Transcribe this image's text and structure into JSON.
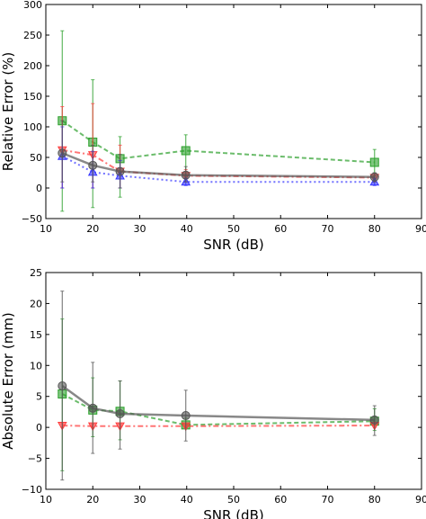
{
  "chart_data": [
    {
      "type": "line",
      "xlabel": "SNR (dB)",
      "ylabel": "Relative Error (%)",
      "xlim": [
        10,
        90
      ],
      "ylim": [
        -50,
        300
      ],
      "xticks": [
        "10",
        "20",
        "30",
        "40",
        "50",
        "60",
        "70",
        "80",
        "90"
      ],
      "yticks": [
        "−50",
        "0",
        "50",
        "100",
        "150",
        "200",
        "250",
        "300"
      ],
      "x": [
        13.5,
        20,
        25.8,
        39.8,
        80
      ],
      "series": [
        {
          "marker": "square",
          "color": "#2ca02c",
          "linestyle": "dashed",
          "values": [
            110,
            75,
            48,
            61,
            42
          ],
          "err_low": [
            -38,
            -32,
            -15,
            10,
            20
          ],
          "err_high": [
            257,
            177,
            84,
            87,
            63
          ]
        },
        {
          "marker": "triangle-down",
          "color": "#ff3b3b",
          "linestyle": "dash-dot",
          "values": [
            62,
            54,
            27,
            20,
            17
          ],
          "err_low": [
            0,
            0,
            0,
            10,
            10
          ],
          "err_high": [
            133,
            138,
            70,
            30,
            24
          ]
        },
        {
          "marker": "triangle-up",
          "color": "#3333ff",
          "linestyle": "dotted",
          "values": [
            52,
            26,
            20,
            10,
            10
          ],
          "err_low": [
            0,
            0,
            0,
            4,
            4
          ],
          "err_high": [
            100,
            60,
            45,
            16,
            16
          ]
        },
        {
          "marker": "circle",
          "color": "#555555",
          "linestyle": "solid",
          "values": [
            57,
            37,
            27,
            21,
            18
          ],
          "err_low": [
            10,
            10,
            0,
            10,
            10
          ],
          "err_high": [
            110,
            70,
            55,
            35,
            25
          ]
        }
      ]
    },
    {
      "type": "line",
      "xlabel": "SNR (dB)",
      "ylabel": "Absolute Error  (mm)",
      "xlim": [
        10,
        90
      ],
      "ylim": [
        -10,
        25
      ],
      "xticks": [
        "10",
        "20",
        "30",
        "40",
        "50",
        "60",
        "70",
        "80",
        "90"
      ],
      "yticks": [
        "−10",
        "−5",
        "0",
        "5",
        "10",
        "15",
        "20",
        "25"
      ],
      "x": [
        13.5,
        20,
        25.8,
        39.8,
        80
      ],
      "series": [
        {
          "marker": "square",
          "color": "#2ca02c",
          "linestyle": "dashed",
          "values": [
            5.4,
            2.8,
            2.6,
            0.4,
            1.0
          ],
          "err_low": [
            -7,
            -1.5,
            -2,
            0,
            -0.5
          ],
          "err_high": [
            17.5,
            8,
            7.5,
            1.5,
            3
          ]
        },
        {
          "marker": "triangle-down",
          "color": "#ff3b3b",
          "linestyle": "dash-dot",
          "values": [
            0.3,
            0.2,
            0.2,
            0.2,
            0.3
          ],
          "err_low": [
            0,
            0,
            0,
            0,
            0
          ],
          "err_high": [
            0.6,
            0.5,
            0.5,
            0.5,
            0.6
          ]
        },
        {
          "marker": "circle",
          "color": "#555555",
          "linestyle": "solid",
          "values": [
            6.7,
            3.1,
            2.2,
            1.9,
            1.2
          ],
          "err_low": [
            -8.5,
            -4.2,
            -3.5,
            -2.2,
            -1.3
          ],
          "err_high": [
            22,
            10.5,
            7.5,
            6.0,
            3.5
          ]
        }
      ]
    }
  ]
}
